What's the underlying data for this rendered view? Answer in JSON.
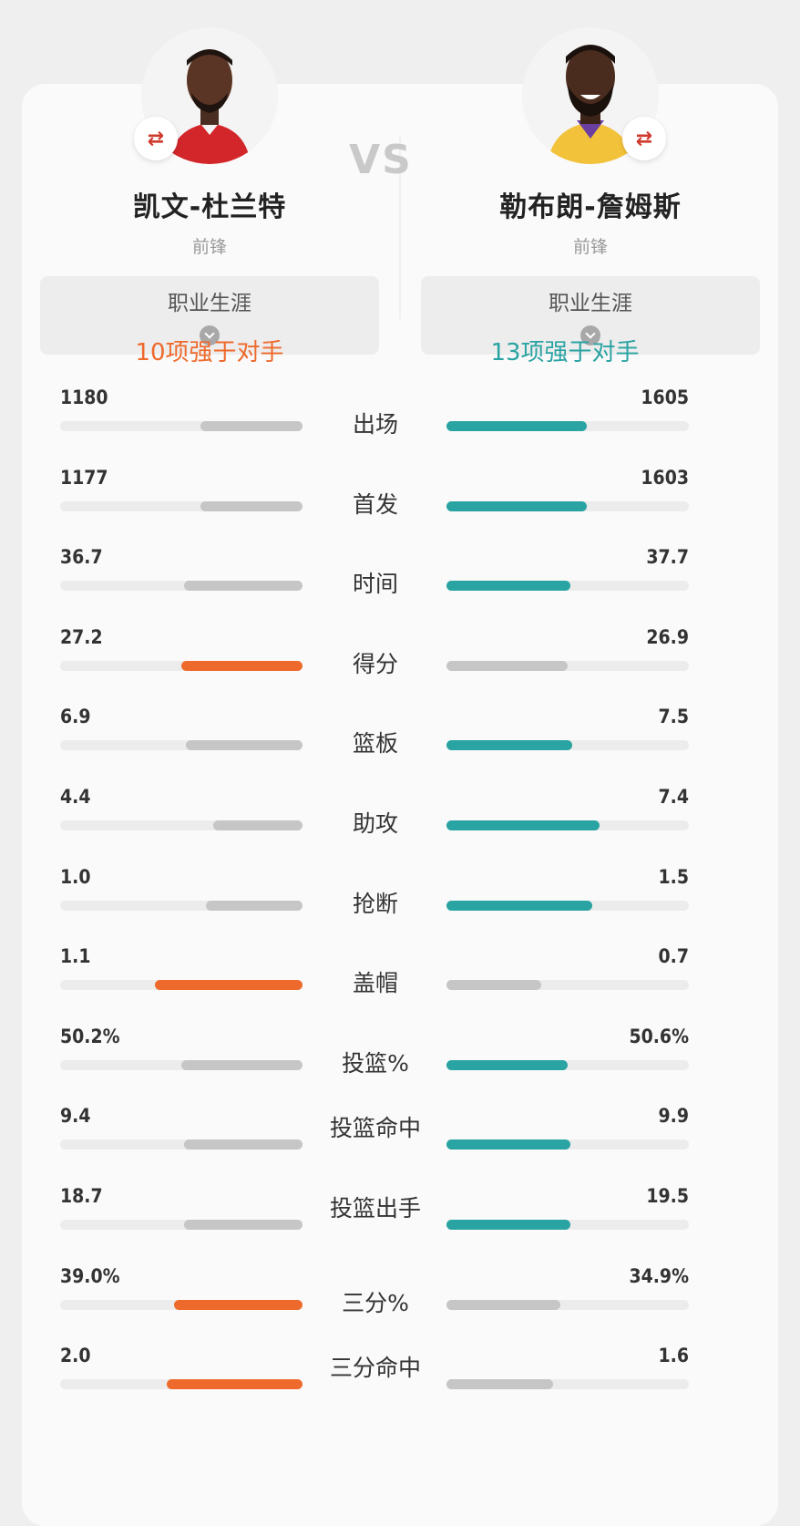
{
  "colors": {
    "left_win": "#ee6a2c",
    "right_win": "#2aa3a3",
    "lose": "#c6c6c6",
    "track": "#ececec"
  },
  "vs_text": "VS",
  "players": {
    "left": {
      "name": "凯文-杜兰特",
      "position": "前锋",
      "scope": "职业生涯",
      "summary": "10项强于对手",
      "avatar": "player-photo",
      "swap_icon": "swap-icon"
    },
    "right": {
      "name": "勒布朗-詹姆斯",
      "position": "前锋",
      "scope": "职业生涯",
      "summary": "13项强于对手",
      "avatar": "player-photo",
      "swap_icon": "swap-icon"
    }
  },
  "stats": [
    {
      "label": "出场",
      "left": "1180",
      "right": "1605",
      "left_frac": 0.42,
      "right_frac": 0.58,
      "winner": "right"
    },
    {
      "label": "首发",
      "left": "1177",
      "right": "1603",
      "left_frac": 0.42,
      "right_frac": 0.58,
      "winner": "right"
    },
    {
      "label": "时间",
      "left": "36.7",
      "right": "37.7",
      "left_frac": 0.49,
      "right_frac": 0.51,
      "winner": "right"
    },
    {
      "label": "得分",
      "left": "27.2",
      "right": "26.9",
      "left_frac": 0.5,
      "right_frac": 0.5,
      "winner": "left"
    },
    {
      "label": "篮板",
      "left": "6.9",
      "right": "7.5",
      "left_frac": 0.48,
      "right_frac": 0.52,
      "winner": "right"
    },
    {
      "label": "助攻",
      "left": "4.4",
      "right": "7.4",
      "left_frac": 0.37,
      "right_frac": 0.63,
      "winner": "right"
    },
    {
      "label": "抢断",
      "left": "1.0",
      "right": "1.5",
      "left_frac": 0.4,
      "right_frac": 0.6,
      "winner": "right"
    },
    {
      "label": "盖帽",
      "left": "1.1",
      "right": "0.7",
      "left_frac": 0.61,
      "right_frac": 0.39,
      "winner": "left"
    },
    {
      "label": "投篮%",
      "left": "50.2%",
      "right": "50.6%",
      "left_frac": 0.5,
      "right_frac": 0.5,
      "winner": "right"
    },
    {
      "label": "投篮命中",
      "left": "9.4",
      "right": "9.9",
      "left_frac": 0.49,
      "right_frac": 0.51,
      "winner": "right"
    },
    {
      "label": "投篮出手",
      "left": "18.7",
      "right": "19.5",
      "left_frac": 0.49,
      "right_frac": 0.51,
      "winner": "right"
    },
    {
      "label": "三分%",
      "left": "39.0%",
      "right": "34.9%",
      "left_frac": 0.53,
      "right_frac": 0.47,
      "winner": "left"
    },
    {
      "label": "三分命中",
      "left": "2.0",
      "right": "1.6",
      "left_frac": 0.56,
      "right_frac": 0.44,
      "winner": "left"
    }
  ]
}
